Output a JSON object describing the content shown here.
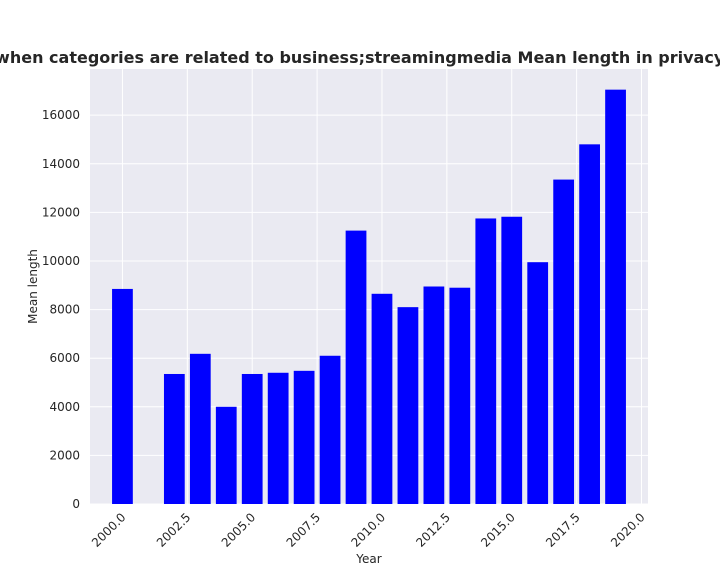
{
  "chart_data": {
    "type": "bar",
    "title": "Mean length when categories are related to business;streamingmedia Mean length in privacy policies by Year",
    "xlabel": "Year",
    "ylabel": "Mean length",
    "x": [
      2000,
      2002,
      2003,
      2004,
      2005,
      2006,
      2007,
      2008,
      2009,
      2010,
      2011,
      2012,
      2013,
      2014,
      2015,
      2016,
      2017,
      2018,
      2019
    ],
    "values": [
      8850,
      5350,
      6180,
      4000,
      5350,
      5400,
      5480,
      6100,
      11250,
      8650,
      8100,
      8950,
      8900,
      11750,
      11820,
      9950,
      13350,
      14800,
      17050
    ],
    "xlim": [
      1998.75,
      2020.25
    ],
    "ylim": [
      0,
      17900
    ],
    "xticks": [
      "2000.0",
      "2002.5",
      "2005.0",
      "2007.5",
      "2010.0",
      "2012.5",
      "2015.0",
      "2017.5",
      "2020.0"
    ],
    "xtick_values": [
      2000,
      2002.5,
      2005,
      2007.5,
      2010,
      2012.5,
      2015,
      2017.5,
      2020
    ],
    "yticks": [
      "0",
      "2000",
      "4000",
      "6000",
      "8000",
      "10000",
      "12000",
      "14000",
      "16000"
    ],
    "ytick_values": [
      0,
      2000,
      4000,
      6000,
      8000,
      10000,
      12000,
      14000,
      16000
    ],
    "bar_color": "#0000ff",
    "background_color": "#eaeaf2",
    "grid_color": "#ffffff",
    "grid": true,
    "legend": false
  }
}
